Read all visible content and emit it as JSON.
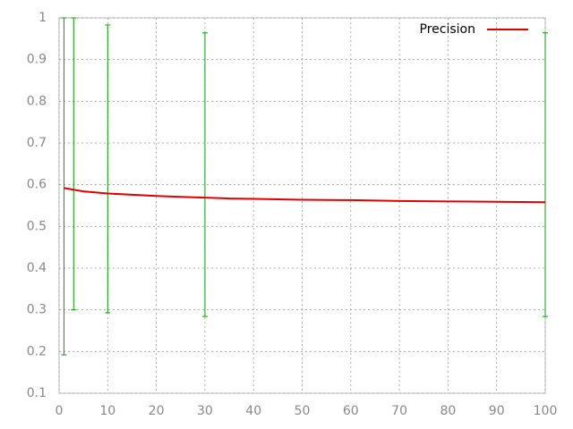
{
  "chart_data": {
    "type": "line",
    "series": [
      {
        "name": "Precision",
        "color": "#e00000",
        "x": [
          1,
          3,
          5,
          10,
          15,
          20,
          25,
          30,
          35,
          40,
          50,
          60,
          70,
          80,
          90,
          100
        ],
        "values": [
          0.592,
          0.588,
          0.584,
          0.579,
          0.576,
          0.573,
          0.571,
          0.569,
          0.567,
          0.566,
          0.564,
          0.563,
          0.561,
          0.56,
          0.559,
          0.558
        ],
        "error_color": "#00a000",
        "error_x": [
          1,
          3,
          10,
          30,
          100
        ],
        "error_low": [
          0.192,
          0.3,
          0.293,
          0.284,
          0.284
        ],
        "error_high": [
          1,
          1,
          0.983,
          0.964,
          0.964
        ]
      }
    ],
    "xlim": [
      0,
      100
    ],
    "xticks": [
      0,
      10,
      20,
      30,
      40,
      50,
      60,
      70,
      80,
      90,
      100
    ],
    "ylim": [
      0.1,
      1
    ],
    "yticks": [
      0.1,
      0.2,
      0.3,
      0.4,
      0.5,
      0.6,
      0.7,
      0.8,
      0.9,
      1
    ],
    "grid": true,
    "legend": "top-right"
  }
}
